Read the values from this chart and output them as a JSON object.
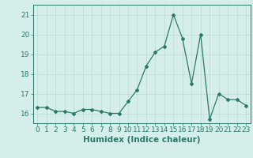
{
  "x": [
    0,
    1,
    2,
    3,
    4,
    5,
    6,
    7,
    8,
    9,
    10,
    11,
    12,
    13,
    14,
    15,
    16,
    17,
    18,
    19,
    20,
    21,
    22,
    23
  ],
  "y": [
    16.3,
    16.3,
    16.1,
    16.1,
    16.0,
    16.2,
    16.2,
    16.1,
    16.0,
    16.0,
    16.6,
    17.2,
    18.4,
    19.1,
    19.4,
    21.0,
    19.8,
    17.5,
    20.0,
    15.7,
    17.0,
    16.7,
    16.7,
    16.4
  ],
  "line_color": "#2a7a6a",
  "marker": "D",
  "marker_size": 2.0,
  "bg_color": "#d5edeb",
  "grid_color": "#c0dcd9",
  "xlabel": "Humidex (Indice chaleur)",
  "xlim": [
    -0.5,
    23.5
  ],
  "ylim": [
    15.5,
    21.5
  ],
  "yticks": [
    16,
    17,
    18,
    19,
    20,
    21
  ],
  "xticks": [
    0,
    1,
    2,
    3,
    4,
    5,
    6,
    7,
    8,
    9,
    10,
    11,
    12,
    13,
    14,
    15,
    16,
    17,
    18,
    19,
    20,
    21,
    22,
    23
  ],
  "xlabel_fontsize": 7.5,
  "tick_fontsize": 6.5
}
